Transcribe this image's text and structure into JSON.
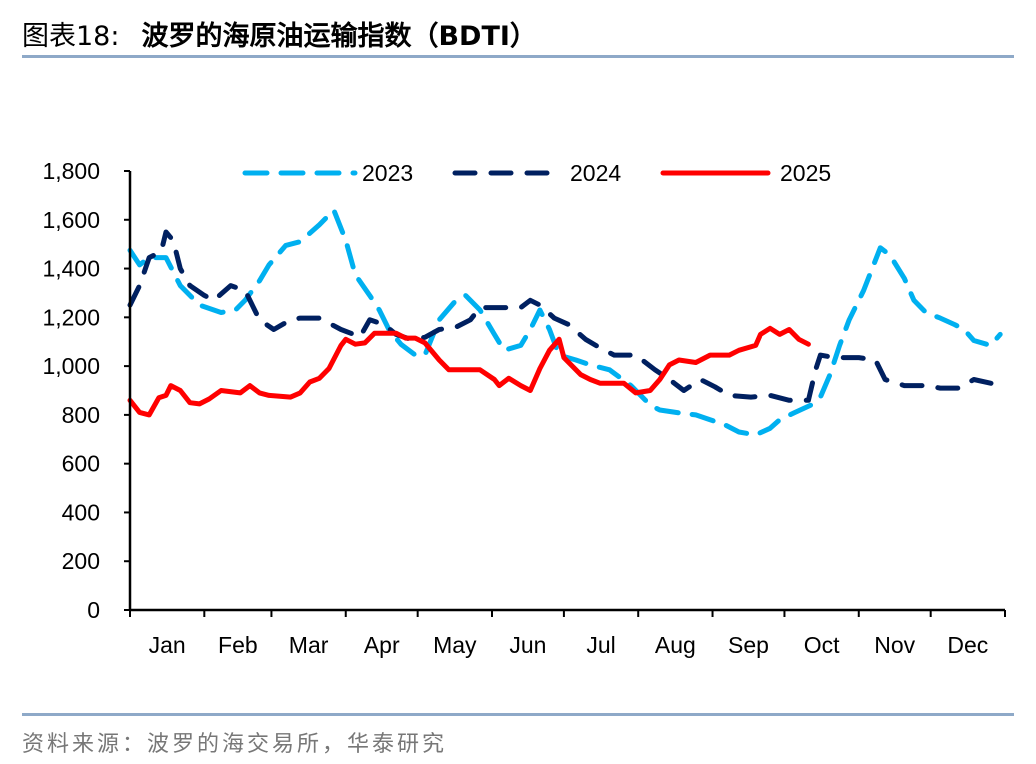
{
  "title": {
    "prefix": "图表18:",
    "main": "波罗的海原油运输指数（BDTI）"
  },
  "source": "资料来源：波罗的海交易所，华泰研究",
  "colors": {
    "2023": "#00B0F0",
    "2024": "#002060",
    "2025": "#FF0000",
    "rule": "#8EA9C8"
  },
  "chart_data": {
    "type": "line",
    "title": "",
    "xlabel": "",
    "ylabel": "",
    "ylim": [
      0,
      1800
    ],
    "yticks": [
      "0",
      "200",
      "400",
      "600",
      "800",
      "1,000",
      "1,200",
      "1,400",
      "1,600",
      "1,800"
    ],
    "xticks": [
      "Jan",
      "Feb",
      "Mar",
      "Apr",
      "May",
      "Jun",
      "Jul",
      "Aug",
      "Sep",
      "Oct",
      "Nov",
      "Dec"
    ],
    "grid": false,
    "legend": "top",
    "series": [
      {
        "name": "2023",
        "style": "dashed",
        "points": [
          [
            "01-01",
            1475
          ],
          [
            "01-05",
            1415
          ],
          [
            "01-09",
            1445
          ],
          [
            "01-16",
            1445
          ],
          [
            "01-22",
            1330
          ],
          [
            "01-30",
            1250
          ],
          [
            "02-08",
            1220
          ],
          [
            "02-14",
            1230
          ],
          [
            "02-18",
            1270
          ],
          [
            "02-24",
            1350
          ],
          [
            "02-28",
            1415
          ],
          [
            "03-07",
            1495
          ],
          [
            "03-13",
            1510
          ],
          [
            "03-21",
            1580
          ],
          [
            "03-27",
            1640
          ],
          [
            "04-01",
            1515
          ],
          [
            "04-05",
            1375
          ],
          [
            "04-11",
            1290
          ],
          [
            "04-15",
            1230
          ],
          [
            "04-19",
            1150
          ],
          [
            "04-24",
            1090
          ],
          [
            "04-30",
            1045
          ],
          [
            "05-04",
            1045
          ],
          [
            "05-10",
            1190
          ],
          [
            "05-17",
            1270
          ],
          [
            "05-21",
            1290
          ],
          [
            "05-27",
            1230
          ],
          [
            "06-02",
            1130
          ],
          [
            "06-06",
            1065
          ],
          [
            "06-13",
            1085
          ],
          [
            "06-17",
            1150
          ],
          [
            "06-21",
            1230
          ],
          [
            "06-25",
            1150
          ],
          [
            "06-29",
            1045
          ],
          [
            "07-06",
            1025
          ],
          [
            "07-12",
            1005
          ],
          [
            "07-20",
            985
          ],
          [
            "07-29",
            920
          ],
          [
            "08-06",
            840
          ],
          [
            "08-10",
            820
          ],
          [
            "08-18",
            808
          ],
          [
            "08-25",
            800
          ],
          [
            "08-31",
            780
          ],
          [
            "09-06",
            760
          ],
          [
            "09-12",
            730
          ],
          [
            "09-19",
            718
          ],
          [
            "09-25",
            745
          ],
          [
            "09-29",
            780
          ],
          [
            "10-05",
            808
          ],
          [
            "10-12",
            840
          ],
          [
            "10-16",
            873
          ],
          [
            "10-20",
            965
          ],
          [
            "10-24",
            1085
          ],
          [
            "10-28",
            1190
          ],
          [
            "11-03",
            1310
          ],
          [
            "11-10",
            1485
          ],
          [
            "11-14",
            1455
          ],
          [
            "11-20",
            1360
          ],
          [
            "11-24",
            1270
          ],
          [
            "11-29",
            1220
          ],
          [
            "12-05",
            1197
          ],
          [
            "12-11",
            1170
          ],
          [
            "12-15",
            1150
          ],
          [
            "12-19",
            1105
          ],
          [
            "12-26",
            1085
          ],
          [
            "12-30",
            1130
          ]
        ]
      },
      {
        "name": "2024",
        "style": "dashed",
        "points": [
          [
            "01-01",
            1250
          ],
          [
            "01-05",
            1330
          ],
          [
            "01-09",
            1445
          ],
          [
            "01-14",
            1470
          ],
          [
            "01-16",
            1550
          ],
          [
            "01-19",
            1515
          ],
          [
            "01-22",
            1400
          ],
          [
            "01-26",
            1330
          ],
          [
            "02-01",
            1290
          ],
          [
            "02-05",
            1270
          ],
          [
            "02-12",
            1330
          ],
          [
            "02-18",
            1310
          ],
          [
            "02-24",
            1190
          ],
          [
            "03-02",
            1150
          ],
          [
            "03-09",
            1190
          ],
          [
            "03-13",
            1197
          ],
          [
            "03-21",
            1197
          ],
          [
            "03-30",
            1150
          ],
          [
            "04-07",
            1120
          ],
          [
            "04-11",
            1190
          ],
          [
            "04-17",
            1170
          ],
          [
            "04-22",
            1130
          ],
          [
            "04-28",
            1110
          ],
          [
            "05-04",
            1118
          ],
          [
            "05-10",
            1150
          ],
          [
            "05-17",
            1160
          ],
          [
            "05-23",
            1190
          ],
          [
            "05-27",
            1240
          ],
          [
            "06-04",
            1240
          ],
          [
            "06-13",
            1240
          ],
          [
            "06-17",
            1270
          ],
          [
            "06-21",
            1250
          ],
          [
            "06-27",
            1197
          ],
          [
            "07-03",
            1170
          ],
          [
            "07-10",
            1110
          ],
          [
            "07-16",
            1075
          ],
          [
            "07-22",
            1045
          ],
          [
            "07-31",
            1045
          ],
          [
            "08-08",
            985
          ],
          [
            "08-14",
            945
          ],
          [
            "08-20",
            900
          ],
          [
            "08-27",
            945
          ],
          [
            "09-02",
            915
          ],
          [
            "09-08",
            880
          ],
          [
            "09-17",
            873
          ],
          [
            "09-25",
            880
          ],
          [
            "10-03",
            860
          ],
          [
            "10-11",
            860
          ],
          [
            "10-14",
            985
          ],
          [
            "10-16",
            1045
          ],
          [
            "10-22",
            1035
          ],
          [
            "11-01",
            1035
          ],
          [
            "11-08",
            1025
          ],
          [
            "11-12",
            945
          ],
          [
            "11-20",
            920
          ],
          [
            "11-29",
            920
          ],
          [
            "12-05",
            910
          ],
          [
            "12-13",
            910
          ],
          [
            "12-19",
            945
          ],
          [
            "12-26",
            930
          ],
          [
            "12-31",
            920
          ]
        ]
      },
      {
        "name": "2025",
        "style": "solid",
        "points": [
          [
            "01-01",
            860
          ],
          [
            "01-05",
            810
          ],
          [
            "01-09",
            800
          ],
          [
            "01-13",
            870
          ],
          [
            "01-16",
            880
          ],
          [
            "01-18",
            920
          ],
          [
            "01-22",
            900
          ],
          [
            "01-26",
            850
          ],
          [
            "01-30",
            845
          ],
          [
            "02-03",
            865
          ],
          [
            "02-08",
            900
          ],
          [
            "02-16",
            890
          ],
          [
            "02-20",
            920
          ],
          [
            "02-24",
            890
          ],
          [
            "02-28",
            880
          ],
          [
            "03-09",
            873
          ],
          [
            "03-13",
            890
          ],
          [
            "03-17",
            935
          ],
          [
            "03-21",
            950
          ],
          [
            "03-25",
            990
          ],
          [
            "03-30",
            1085
          ],
          [
            "04-01",
            1110
          ],
          [
            "04-05",
            1090
          ],
          [
            "04-09",
            1095
          ],
          [
            "04-13",
            1135
          ],
          [
            "04-22",
            1135
          ],
          [
            "04-26",
            1115
          ],
          [
            "04-30",
            1115
          ],
          [
            "05-04",
            1095
          ],
          [
            "05-10",
            1025
          ],
          [
            "05-14",
            985
          ],
          [
            "05-27",
            985
          ],
          [
            "06-02",
            945
          ],
          [
            "06-04",
            920
          ],
          [
            "06-08",
            950
          ],
          [
            "06-13",
            920
          ],
          [
            "06-17",
            900
          ],
          [
            "06-21",
            990
          ],
          [
            "06-25",
            1065
          ],
          [
            "06-29",
            1110
          ],
          [
            "07-01",
            1035
          ],
          [
            "07-08",
            965
          ],
          [
            "07-12",
            945
          ],
          [
            "07-16",
            930
          ],
          [
            "07-26",
            930
          ],
          [
            "07-31",
            890
          ],
          [
            "08-06",
            900
          ],
          [
            "08-10",
            945
          ],
          [
            "08-14",
            1005
          ],
          [
            "08-18",
            1025
          ],
          [
            "08-25",
            1015
          ],
          [
            "08-31",
            1045
          ],
          [
            "09-08",
            1045
          ],
          [
            "09-12",
            1065
          ],
          [
            "09-19",
            1085
          ],
          [
            "09-21",
            1130
          ],
          [
            "09-25",
            1155
          ],
          [
            "09-29",
            1130
          ],
          [
            "10-03",
            1150
          ],
          [
            "10-07",
            1110
          ],
          [
            "10-11",
            1090
          ]
        ]
      }
    ]
  }
}
